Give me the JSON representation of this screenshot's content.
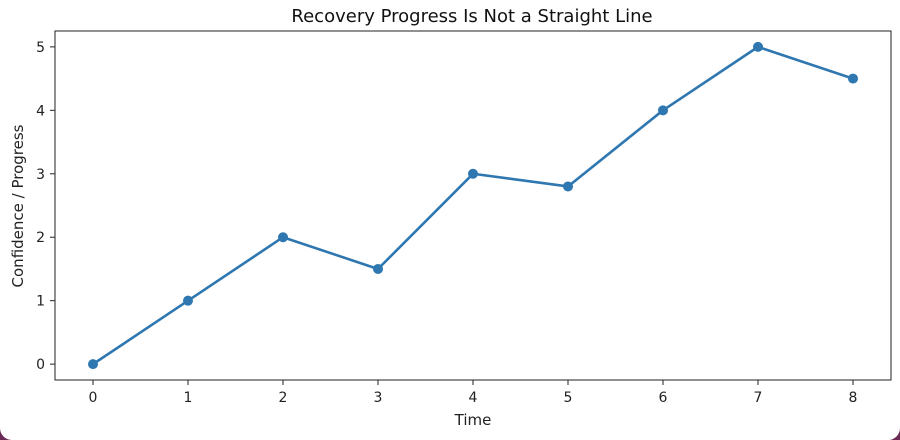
{
  "chart_data": {
    "type": "line",
    "title": "Recovery Progress Is Not a Straight Line",
    "xlabel": "Time",
    "ylabel": "Confidence / Progress",
    "x": [
      0,
      1,
      2,
      3,
      4,
      5,
      6,
      7,
      8
    ],
    "series": [
      {
        "values": [
          0,
          1,
          2,
          1.5,
          3,
          2.8,
          4,
          5,
          4.5
        ]
      }
    ],
    "xticks": [
      0,
      1,
      2,
      3,
      4,
      5,
      6,
      7,
      8
    ],
    "yticks": [
      0,
      1,
      2,
      3,
      4,
      5
    ],
    "xlim": [
      -0.4,
      8.4
    ],
    "ylim": [
      -0.25,
      5.25
    ],
    "grid": false,
    "marker": "circle",
    "color": "#2e77b0"
  }
}
